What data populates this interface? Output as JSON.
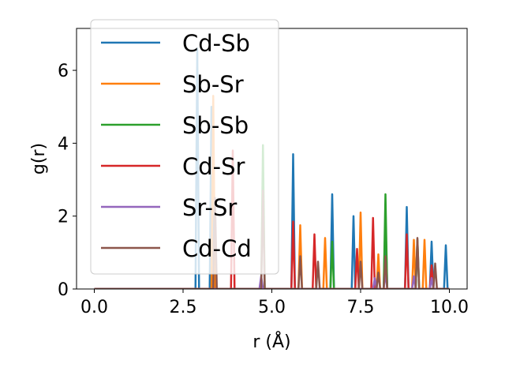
{
  "chart_data": {
    "type": "line",
    "title": "",
    "xlabel": "r (Å)",
    "ylabel": "g(r)",
    "xlim": [
      -0.5,
      10.5
    ],
    "ylim": [
      0,
      7.15
    ],
    "xticks": [
      0.0,
      2.5,
      5.0,
      7.5,
      10.0
    ],
    "xtick_labels": [
      "0.0",
      "2.5",
      "5.0",
      "7.5",
      "10.0"
    ],
    "yticks": [
      0,
      2,
      4,
      6
    ],
    "ytick_labels": [
      "0",
      "2",
      "4",
      "6"
    ],
    "grid": false,
    "legend_position": "top-left",
    "series": [
      {
        "name": "Cd-Sb",
        "color": "#1f77b4",
        "peaks": [
          [
            2.9,
            6.6
          ],
          [
            3.3,
            5.0
          ],
          [
            5.6,
            3.7
          ],
          [
            6.7,
            2.6
          ],
          [
            7.3,
            2.0
          ],
          [
            8.2,
            2.0
          ],
          [
            8.8,
            2.25
          ],
          [
            9.5,
            1.3
          ],
          [
            9.9,
            1.2
          ]
        ]
      },
      {
        "name": "Sb-Sr",
        "color": "#ff7f0e",
        "peaks": [
          [
            3.35,
            5.3
          ],
          [
            5.8,
            1.75
          ],
          [
            6.5,
            1.4
          ],
          [
            7.5,
            2.1
          ],
          [
            8.0,
            0.95
          ],
          [
            9.0,
            1.35
          ],
          [
            9.3,
            1.35
          ]
        ]
      },
      {
        "name": "Sb-Sb",
        "color": "#2ca02c",
        "peaks": [
          [
            4.75,
            3.95
          ],
          [
            6.7,
            1.3
          ],
          [
            8.2,
            2.6
          ],
          [
            9.1,
            1.35
          ]
        ]
      },
      {
        "name": "Cd-Sr",
        "color": "#d62728",
        "peaks": [
          [
            3.9,
            3.8
          ],
          [
            5.6,
            1.85
          ],
          [
            6.2,
            1.5
          ],
          [
            7.4,
            1.1
          ],
          [
            7.85,
            1.95
          ],
          [
            8.8,
            1.5
          ],
          [
            9.5,
            0.65
          ]
        ]
      },
      {
        "name": "Sr-Sr",
        "color": "#9467bd",
        "peaks": [
          [
            4.7,
            0.35
          ],
          [
            7.9,
            0.3
          ],
          [
            8.2,
            0.45
          ],
          [
            9.0,
            0.35
          ],
          [
            9.5,
            0.3
          ]
        ]
      },
      {
        "name": "Cd-Cd",
        "color": "#8c564b",
        "peaks": [
          [
            3.4,
            2.5
          ],
          [
            4.75,
            2.7
          ],
          [
            5.8,
            0.9
          ],
          [
            6.3,
            0.75
          ],
          [
            7.5,
            0.75
          ],
          [
            8.0,
            0.45
          ],
          [
            8.2,
            0.9
          ],
          [
            9.1,
            1.4
          ],
          [
            9.6,
            0.7
          ]
        ]
      }
    ]
  }
}
